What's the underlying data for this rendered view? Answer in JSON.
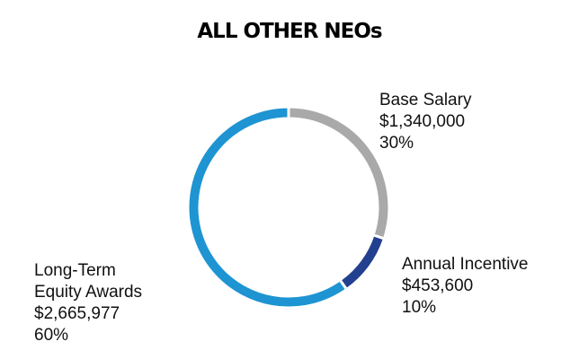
{
  "chart_data": {
    "type": "pie",
    "donut": true,
    "title": "ALL OTHER NEOs",
    "slices": [
      {
        "name": "Base Salary",
        "value": 1340000,
        "value_label": "$1,340,000",
        "percent": 30,
        "percent_label": "30%",
        "color": "#a9a9a9"
      },
      {
        "name": "Annual Incentive",
        "value": 453600,
        "value_label": "$453,600",
        "percent": 10,
        "percent_label": "10%",
        "color": "#233f8f"
      },
      {
        "name": "Long-Term Equity Awards",
        "name_lines": [
          "Long-Term",
          "Equity Awards"
        ],
        "value": 2665977,
        "value_label": "$2,665,977",
        "percent": 60,
        "percent_label": "60%",
        "color": "#1e94d2"
      }
    ],
    "legend": "none"
  }
}
